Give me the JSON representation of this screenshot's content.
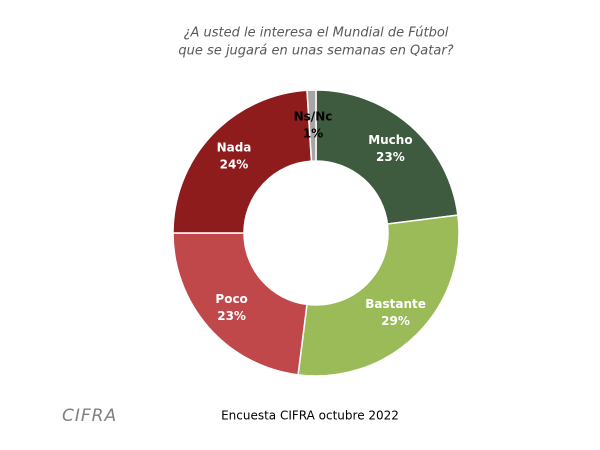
{
  "chart_data": {
    "type": "donut",
    "title": [
      "¿A usted le interesa el Mundial de Fútbol",
      "que se jugará en unas semanas en Qatar?"
    ],
    "categories": [
      "Mucho",
      "Bastante",
      "Poco",
      "Nada",
      "Ns/Nc"
    ],
    "values": [
      23,
      29,
      23,
      24,
      1
    ],
    "value_labels": [
      "23%",
      "29%",
      "23%",
      "24%",
      "1%"
    ],
    "colors": [
      "#3e5b3f",
      "#9bbb59",
      "#c0474a",
      "#8e1c1c",
      "#a6a6a6"
    ],
    "label_colors": [
      "#ffffff",
      "#ffffff",
      "#ffffff",
      "#ffffff",
      "#000000"
    ],
    "source": "Encuesta CIFRA octubre 2022",
    "logo": "CIFRA"
  }
}
